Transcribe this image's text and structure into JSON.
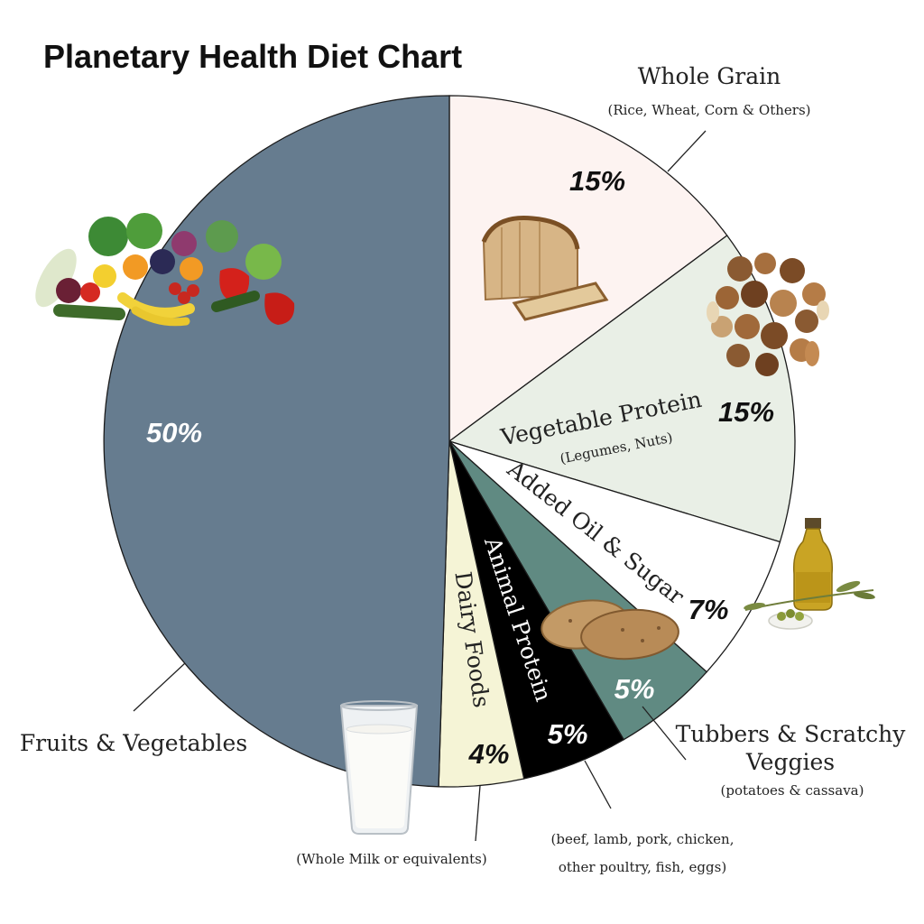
{
  "title": "Planetary Health Diet Chart",
  "chart_data": {
    "type": "pie",
    "title": "Planetary Health Diet Chart",
    "start_angle_deg": 0,
    "direction": "clockwise",
    "slices": [
      {
        "label": "Whole Grain",
        "sublabel": "(Rice, Wheat, Corn & Others)",
        "value": 15,
        "value_label": "15%",
        "color": "#fdf3f1",
        "icon": "bread-icon"
      },
      {
        "label": "Vegetable Protein",
        "sublabel": "(Legumes, Nuts)",
        "value": 15,
        "value_label": "15%",
        "color": "#e9efe6",
        "icon": "nuts-icon"
      },
      {
        "label": "Added Oil & Sugar",
        "sublabel": "",
        "value": 7,
        "value_label": "7%",
        "color": "#ffffff",
        "icon": "olive-oil-icon"
      },
      {
        "label": "Tubbers & Scratchy Veggies",
        "sublabel": "(potatoes & cassava)",
        "value": 5,
        "value_label": "5%",
        "color": "#608a82",
        "icon": "potato-icon"
      },
      {
        "label": "Animal Protein",
        "sublabel": "(beef, lamb, pork, chicken, other poultry, fish, eggs)",
        "value": 5,
        "value_label": "5%",
        "color": "#000000",
        "icon": ""
      },
      {
        "label": "Dairy Foods",
        "sublabel": "(Whole Milk or equivalents)",
        "value": 4,
        "value_label": "4%",
        "color": "#f5f4d6",
        "icon": "milk-glass-icon"
      },
      {
        "label": "Fruits & Vegetables",
        "sublabel": "",
        "value": 50,
        "value_label": "50%",
        "color": "#667c8f",
        "icon": "fruits-vegetables-icon"
      }
    ]
  },
  "labels": {
    "whole_grain": "Whole Grain",
    "whole_grain_sub": "(Rice, Wheat, Corn & Others)",
    "veg_protein": "Vegetable Protein",
    "veg_protein_sub": "(Legumes, Nuts)",
    "oil_sugar": "Added Oil & Sugar",
    "tubers_line1": "Tubbers & Scratchy",
    "tubers_line2": "Veggies",
    "tubers_sub": "(potatoes & cassava)",
    "animal": "Animal Protein",
    "animal_sub_line1": "(beef, lamb, pork, chicken,",
    "animal_sub_line2": "other poultry, fish, eggs)",
    "dairy": "Dairy Foods",
    "dairy_sub": "(Whole Milk or equivalents)",
    "fruits": "Fruits & Vegetables"
  },
  "icons": [
    "bread-icon",
    "nuts-icon",
    "olive-oil-icon",
    "potato-icon",
    "milk-glass-icon",
    "fruits-vegetables-icon"
  ]
}
